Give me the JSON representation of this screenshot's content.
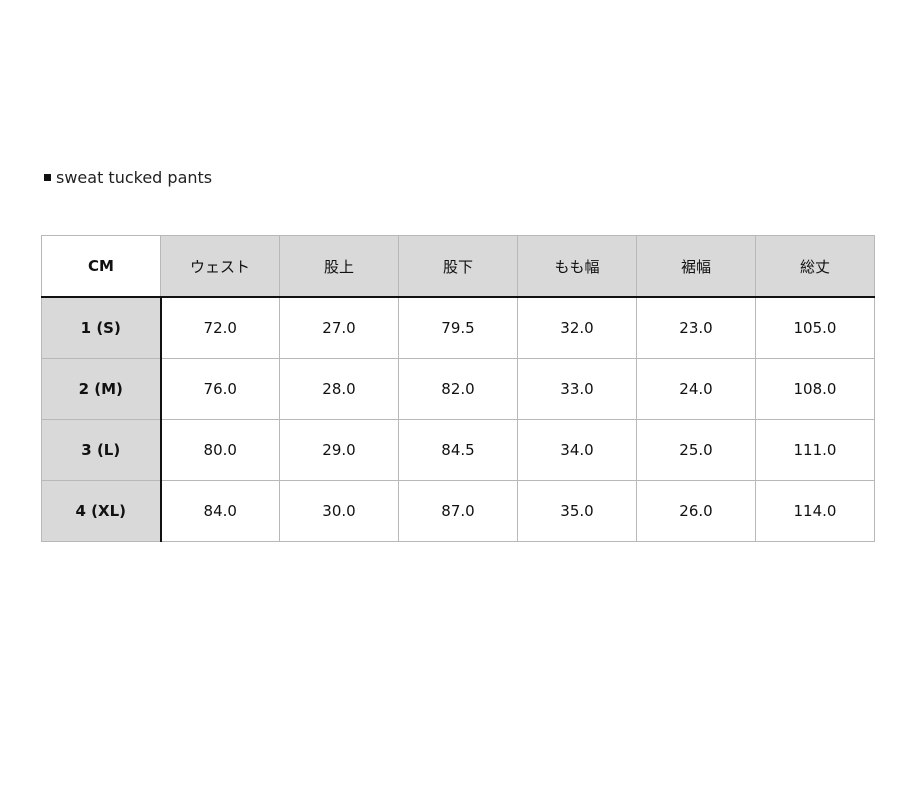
{
  "title": "sweat tucked pants",
  "table": {
    "corner": "CM",
    "columns": [
      "ウェスト",
      "股上",
      "股下",
      "もも幅",
      "裾幅",
      "総丈"
    ],
    "rows": [
      {
        "size": "1 (S)",
        "values": [
          "72.0",
          "27.0",
          "79.5",
          "32.0",
          "23.0",
          "105.0"
        ]
      },
      {
        "size": "2 (M)",
        "values": [
          "76.0",
          "28.0",
          "82.0",
          "33.0",
          "24.0",
          "108.0"
        ]
      },
      {
        "size": "3 (L)",
        "values": [
          "80.0",
          "29.0",
          "84.5",
          "34.0",
          "25.0",
          "111.0"
        ]
      },
      {
        "size": "4 (XL)",
        "values": [
          "84.0",
          "30.0",
          "87.0",
          "35.0",
          "26.0",
          "114.0"
        ]
      }
    ]
  }
}
